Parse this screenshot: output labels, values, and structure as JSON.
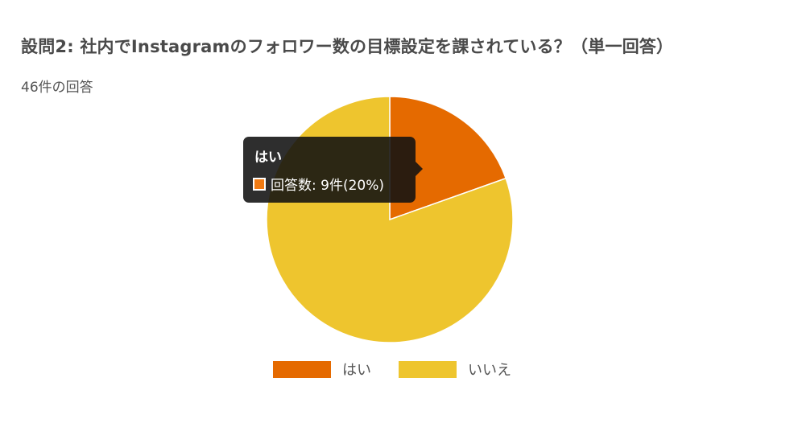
{
  "title": "設問2: 社内でInstagramのフォロワー数の目標設定を課されている？（単一回答）",
  "subtitle": "46件の回答",
  "chart_data": {
    "type": "pie",
    "total": 46,
    "slices": [
      {
        "label": "はい",
        "value": 9,
        "percent": 20,
        "color": "#e56a00"
      },
      {
        "label": "いいえ",
        "value": 37,
        "percent": 80,
        "color": "#eec52e"
      }
    ],
    "legend_position": "bottom"
  },
  "tooltip": {
    "title": "はい",
    "text": "回答数: 9件(20%)",
    "swatch_color": "#f07a12"
  }
}
